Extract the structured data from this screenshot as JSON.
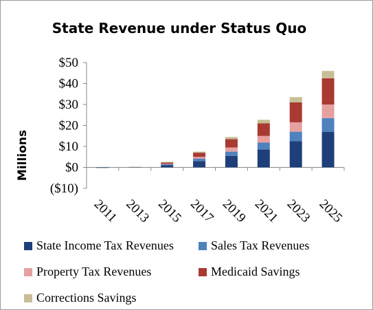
{
  "chart_data": {
    "type": "bar",
    "stacked": true,
    "title": "State Revenue under Status Quo",
    "xlabel": "",
    "ylabel": "Millions",
    "ylim": [
      -10,
      50
    ],
    "yticks": [
      -10,
      0,
      10,
      20,
      30,
      40,
      50
    ],
    "ytick_labels": [
      "($10)",
      "$0",
      "$10",
      "$20",
      "$30",
      "$40",
      "$50"
    ],
    "categories": [
      "2011",
      "2013",
      "2015",
      "2017",
      "2019",
      "2021",
      "2023",
      "2025"
    ],
    "grid": false,
    "legend_position": "bottom",
    "series": [
      {
        "name": "State Income Tax Revenues",
        "color": "#1F3F7A",
        "values": [
          -0.2,
          0.1,
          1.0,
          3.0,
          5.5,
          8.5,
          12.5,
          17.0
        ]
      },
      {
        "name": "Sales Tax Revenues",
        "color": "#4F81BD",
        "values": [
          0,
          0,
          0.5,
          1.2,
          2.0,
          3.3,
          4.5,
          6.5
        ]
      },
      {
        "name": "Property Tax Revenues",
        "color": "#E6A0A0",
        "values": [
          0,
          0,
          0.2,
          0.8,
          2.0,
          3.2,
          4.5,
          6.5
        ]
      },
      {
        "name": "Medicaid Savings",
        "color": "#A83A32",
        "values": [
          0,
          0,
          0.6,
          2.0,
          4.0,
          6.0,
          9.5,
          12.5
        ]
      },
      {
        "name": "Corrections Savings",
        "color": "#C9BE96",
        "values": [
          0,
          0.2,
          0.3,
          0.5,
          1.0,
          1.7,
          2.5,
          3.5
        ]
      }
    ]
  }
}
